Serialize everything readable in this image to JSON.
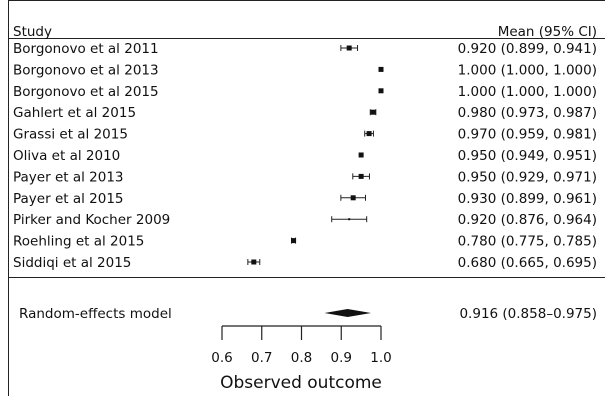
{
  "chart_data": {
    "type": "forest",
    "header": {
      "study": "Study",
      "estimate": "Mean (95% CI)"
    },
    "studies": [
      {
        "name": "Borgonovo et al 2011",
        "mean": 0.92,
        "lower": 0.899,
        "upper": 0.941,
        "label": "0.920 (0.899, 0.941)"
      },
      {
        "name": "Borgonovo et al 2013",
        "mean": 1.0,
        "lower": 1.0,
        "upper": 1.0,
        "label": "1.000 (1.000, 1.000)"
      },
      {
        "name": "Borgonovo et al 2015",
        "mean": 1.0,
        "lower": 1.0,
        "upper": 1.0,
        "label": "1.000 (1.000, 1.000)"
      },
      {
        "name": "Gahlert et al 2015",
        "mean": 0.98,
        "lower": 0.973,
        "upper": 0.987,
        "label": "0.980 (0.973, 0.987)"
      },
      {
        "name": "Grassi et al 2015",
        "mean": 0.97,
        "lower": 0.959,
        "upper": 0.981,
        "label": "0.970 (0.959, 0.981)"
      },
      {
        "name": "Oliva et al 2010",
        "mean": 0.95,
        "lower": 0.949,
        "upper": 0.951,
        "label": "0.950 (0.949, 0.951)"
      },
      {
        "name": "Payer et al 2013",
        "mean": 0.95,
        "lower": 0.929,
        "upper": 0.971,
        "label": "0.950 (0.929, 0.971)"
      },
      {
        "name": "Payer et al 2015",
        "mean": 0.93,
        "lower": 0.899,
        "upper": 0.961,
        "label": "0.930 (0.899, 0.961)"
      },
      {
        "name": "Pirker and Kocher 2009",
        "mean": 0.92,
        "lower": 0.876,
        "upper": 0.964,
        "label": "0.920 (0.876, 0.964)"
      },
      {
        "name": "Roehling et al 2015",
        "mean": 0.78,
        "lower": 0.775,
        "upper": 0.785,
        "label": "0.780 (0.775, 0.785)"
      },
      {
        "name": "Siddiqi et al 2015",
        "mean": 0.68,
        "lower": 0.665,
        "upper": 0.695,
        "label": "0.680 (0.665, 0.695)"
      }
    ],
    "summary": {
      "name": "Random-effects model",
      "mean": 0.916,
      "lower": 0.858,
      "upper": 0.975,
      "label": "0.916 (0.858–0.975)"
    },
    "xaxis": {
      "label": "Observed outcome",
      "ticks": [
        0.6,
        0.7,
        0.8,
        0.9,
        1.0
      ],
      "tick_labels": [
        "0.6",
        "0.7",
        "0.8",
        "0.9",
        "1.0"
      ],
      "range": [
        0.6,
        1.0
      ]
    }
  }
}
